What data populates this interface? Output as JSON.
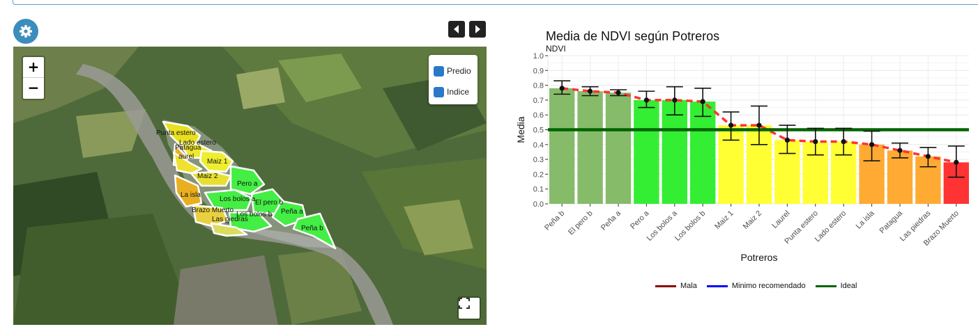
{
  "controls": {
    "zoom_in_label": "+",
    "zoom_out_label": "−",
    "layers": [
      "Predio",
      "Indice"
    ]
  },
  "map": {
    "parcel_labels": [
      "Punta estero",
      "Lado estero",
      "Patagua",
      "aurel",
      "Maiz 1",
      "Maiz 2",
      "Pero a",
      "La isla",
      "Los bolos a",
      "El pero b",
      "Brazo Muerto",
      "Los bolos b",
      "Las piedras",
      "Peña a",
      "Peña b"
    ]
  },
  "chart": {
    "title": "Media de NDVI según Potreros",
    "subtitle": "NDVI",
    "xlabel": "Potreros",
    "ylabel": "Media",
    "legend": [
      {
        "name": "Mala",
        "color": "#8b0000"
      },
      {
        "name": "Minimo recomendado",
        "color": "#0000ff"
      },
      {
        "name": "Ideal",
        "color": "#006400"
      }
    ]
  },
  "chart_data": {
    "type": "bar",
    "title": "Media de NDVI según Potreros",
    "subtitle": "NDVI",
    "xlabel": "Potreros",
    "ylabel": "Media",
    "ylim": [
      0,
      1.0
    ],
    "yticks": [
      "0.0",
      "0.1",
      "0.2",
      "0.3",
      "0.4",
      "0.5",
      "0.6",
      "0.7",
      "0.8",
      "0.9",
      "1.0"
    ],
    "categories": [
      "Peña b",
      "El pero b",
      "Peña a",
      "Pero a",
      "Los bolos a",
      "Los bolos b",
      "Maiz 1",
      "Maiz 2",
      "Laurel",
      "Punta estero",
      "Lado estero",
      "La isla",
      "Patagua",
      "Las piedras",
      "Brazo Muerto"
    ],
    "values": [
      0.78,
      0.76,
      0.75,
      0.7,
      0.7,
      0.69,
      0.53,
      0.53,
      0.43,
      0.42,
      0.42,
      0.4,
      0.36,
      0.32,
      0.28
    ],
    "error_low": [
      0.74,
      0.73,
      0.73,
      0.65,
      0.6,
      0.59,
      0.43,
      0.4,
      0.34,
      0.33,
      0.33,
      0.29,
      0.31,
      0.25,
      0.18
    ],
    "error_high": [
      0.83,
      0.79,
      0.77,
      0.76,
      0.79,
      0.78,
      0.62,
      0.66,
      0.53,
      0.51,
      0.51,
      0.49,
      0.41,
      0.38,
      0.39
    ],
    "bar_colors": [
      "#86bb6a",
      "#86bb6a",
      "#86bb6a",
      "#33ee33",
      "#33ee33",
      "#33ee33",
      "#ffff33",
      "#ffff33",
      "#ffff33",
      "#ffff33",
      "#ffff33",
      "#ffaa33",
      "#ffaa33",
      "#ffaa33",
      "#ff3333"
    ],
    "reference_lines": [
      {
        "name": "Ideal",
        "y": 0.5,
        "color": "#006400"
      }
    ],
    "trend_color": "#ff3333",
    "grid": true
  }
}
